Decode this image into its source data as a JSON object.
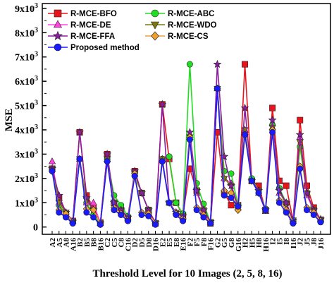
{
  "chart_data": {
    "type": "line",
    "title": "",
    "xlabel": "Threshold Level for 10 Images (2, 5, 8, 16)",
    "ylabel": "MSE",
    "ylim": [
      -300,
      9200
    ],
    "yticks": [
      {
        "value": 0,
        "label": "0"
      },
      {
        "value": 1000,
        "label": "1x10",
        "exp": "3"
      },
      {
        "value": 2000,
        "label": "2x10",
        "exp": "3"
      },
      {
        "value": 3000,
        "label": "3x10",
        "exp": "3"
      },
      {
        "value": 4000,
        "label": "4x10",
        "exp": "3"
      },
      {
        "value": 5000,
        "label": "5x10",
        "exp": "3"
      },
      {
        "value": 6000,
        "label": "6x10",
        "exp": "3"
      },
      {
        "value": 7000,
        "label": "7x10",
        "exp": "3"
      },
      {
        "value": 8000,
        "label": "8x10",
        "exp": "3"
      },
      {
        "value": 9000,
        "label": "9x10",
        "exp": "3"
      }
    ],
    "grid": false,
    "legend_position": "top",
    "categories": [
      "A2",
      "A5",
      "A8",
      "A16",
      "B2",
      "B5",
      "B8",
      "B16",
      "C2",
      "C5",
      "C8",
      "C16",
      "D2",
      "D5",
      "D8",
      "D16",
      "E2",
      "E5",
      "E8",
      "E16",
      "F2",
      "F5",
      "F8",
      "F16",
      "G2",
      "G5",
      "G8",
      "G16",
      "H2",
      "H5",
      "H8",
      "H16",
      "I2",
      "I5",
      "I8",
      "I16",
      "J2",
      "J5",
      "J8",
      "J16"
    ],
    "series": [
      {
        "name": "R-MCE-BFO",
        "color": "#e8141c",
        "marker": "square",
        "values": [
          2400,
          1200,
          500,
          250,
          3900,
          1300,
          800,
          180,
          3000,
          1000,
          700,
          350,
          2300,
          1400,
          700,
          150,
          5050,
          2800,
          1000,
          500,
          2400,
          1500,
          600,
          150,
          3900,
          1400,
          900,
          900,
          6700,
          1900,
          1700,
          700,
          4900,
          1900,
          1700,
          250,
          4400,
          1700,
          800,
          300
        ]
      },
      {
        "name": "R-MCE-ABC",
        "color": "#22dd22",
        "marker": "circle",
        "values": [
          2300,
          900,
          500,
          200,
          2800,
          1000,
          500,
          100,
          2800,
          1300,
          900,
          450,
          2100,
          1400,
          700,
          180,
          2800,
          2900,
          1000,
          550,
          6700,
          1800,
          950,
          200,
          5700,
          2300,
          2200,
          900,
          3900,
          2000,
          1500,
          750,
          4200,
          1600,
          1000,
          280,
          3300,
          1400,
          600,
          300
        ]
      },
      {
        "name": "R-MCE-DE",
        "color": "#ff44e0",
        "marker": "triangle",
        "values": [
          2700,
          1000,
          600,
          250,
          2800,
          1000,
          1000,
          150,
          2800,
          1000,
          700,
          350,
          2200,
          1400,
          700,
          180,
          2800,
          1000,
          600,
          400,
          3700,
          1400,
          700,
          200,
          5700,
          2000,
          1800,
          800,
          4000,
          1900,
          1400,
          650,
          4100,
          1400,
          1000,
          250,
          3700,
          1300,
          700,
          300
        ]
      },
      {
        "name": "R-MCE-WDO",
        "color": "#7a7a10",
        "marker": "triangle-down",
        "values": [
          2400,
          1000,
          600,
          230,
          2800,
          1100,
          700,
          150,
          2800,
          1000,
          700,
          380,
          2200,
          1400,
          700,
          180,
          2800,
          1000,
          600,
          450,
          3700,
          1500,
          700,
          220,
          5700,
          2000,
          1700,
          800,
          4000,
          1900,
          1500,
          700,
          4100,
          1500,
          900,
          280,
          3500,
          1400,
          700,
          320
        ]
      },
      {
        "name": "R-MCE-FFA",
        "color": "#8a1ea0",
        "marker": "star",
        "values": [
          2400,
          1300,
          600,
          230,
          3900,
          1200,
          700,
          160,
          3000,
          1000,
          700,
          400,
          2300,
          1400,
          700,
          180,
          5050,
          1000,
          600,
          450,
          3900,
          1500,
          700,
          220,
          6700,
          2900,
          1700,
          850,
          4900,
          1900,
          1500,
          700,
          4400,
          1500,
          1000,
          280,
          3800,
          1400,
          700,
          320
        ]
      },
      {
        "name": "R-MCE-CS",
        "color": "#f0a030",
        "marker": "diamond",
        "values": [
          2300,
          700,
          550,
          200,
          2800,
          750,
          700,
          130,
          2700,
          800,
          550,
          300,
          2200,
          600,
          550,
          150,
          2700,
          1000,
          550,
          350,
          3700,
          800,
          500,
          180,
          5700,
          1500,
          1400,
          700,
          3800,
          1900,
          1400,
          700,
          4000,
          1100,
          700,
          200,
          2500,
          800,
          600,
          250
        ]
      },
      {
        "name": "Proposed method",
        "color": "#1a1aff",
        "marker": "circle",
        "values": [
          2300,
          600,
          400,
          150,
          2800,
          600,
          400,
          100,
          2700,
          700,
          500,
          250,
          2100,
          500,
          450,
          100,
          2700,
          1000,
          500,
          250,
          3600,
          700,
          400,
          150,
          5700,
          1300,
          1200,
          850,
          3800,
          1900,
          1400,
          700,
          3900,
          1000,
          600,
          150,
          2400,
          700,
          500,
          200
        ]
      }
    ]
  }
}
